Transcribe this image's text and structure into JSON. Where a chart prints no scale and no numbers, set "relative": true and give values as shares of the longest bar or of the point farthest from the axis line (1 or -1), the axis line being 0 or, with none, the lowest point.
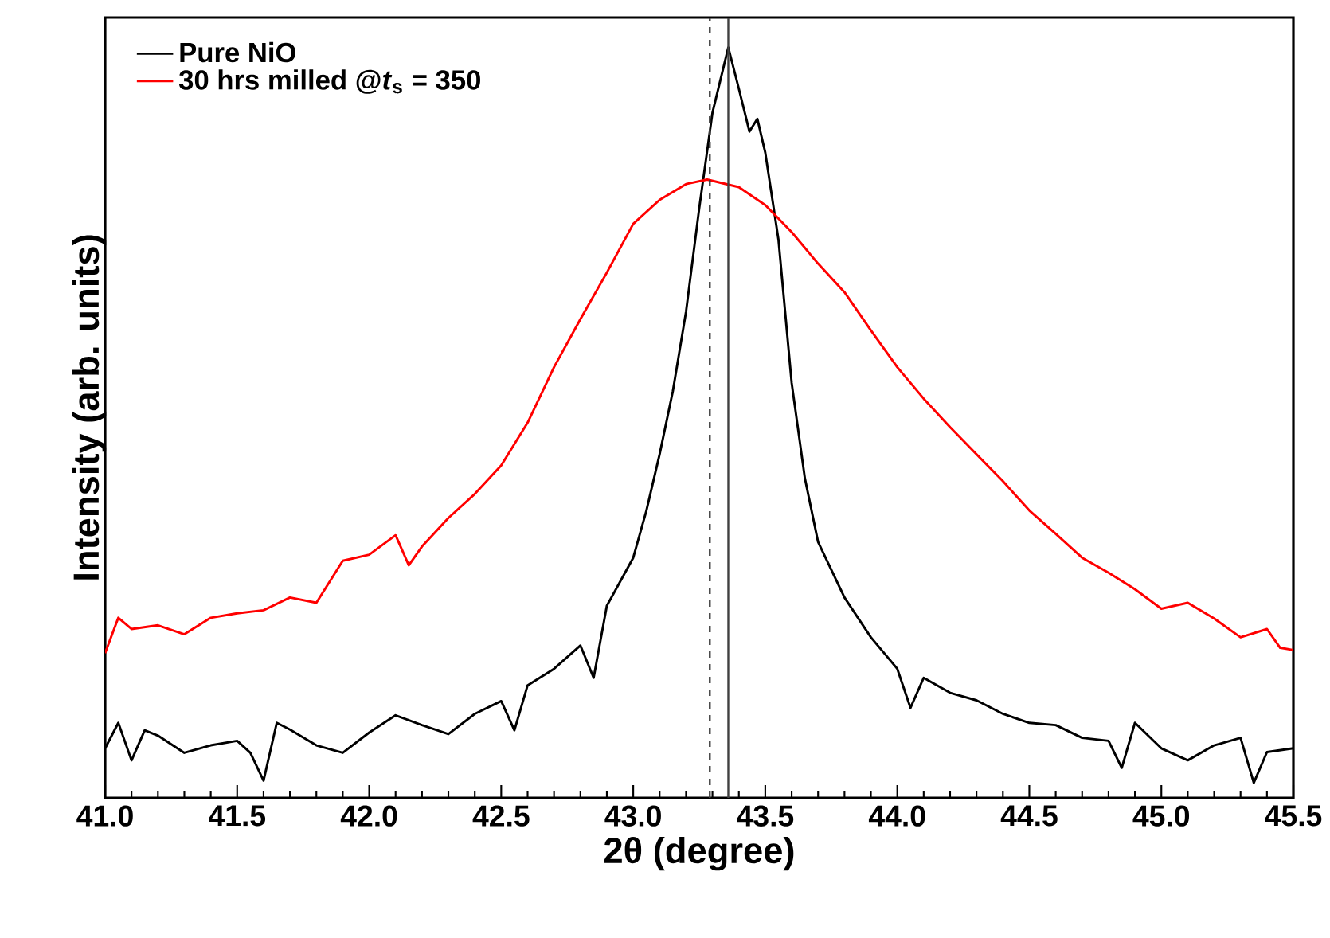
{
  "chart_data": {
    "type": "line",
    "relative": true,
    "xlabel": "2θ (degree)",
    "ylabel": "Intensity (arb. units)",
    "xlim": [
      41.0,
      45.5
    ],
    "xticks": [
      {
        "value": 41.0,
        "label": "41.0"
      },
      {
        "value": 41.5,
        "label": "41.5"
      },
      {
        "value": 42.0,
        "label": "42.0"
      },
      {
        "value": 42.5,
        "label": "42.5"
      },
      {
        "value": 43.0,
        "label": "43.0"
      },
      {
        "value": 43.5,
        "label": "43.5"
      },
      {
        "value": 44.0,
        "label": "44.0"
      },
      {
        "value": 44.5,
        "label": "44.5"
      },
      {
        "value": 45.0,
        "label": "45.0"
      },
      {
        "value": 45.5,
        "label": "45.5"
      }
    ],
    "legend": "top left",
    "grid": false,
    "marker": "none",
    "line_style": "solid",
    "ref_lines": [
      {
        "axis": "x",
        "value": 43.29,
        "color": "#404040",
        "line_style": "dashed"
      },
      {
        "axis": "x",
        "value": 43.36,
        "color": "#404040",
        "line_style": "solid"
      }
    ],
    "series": [
      {
        "name": "Pure NiO",
        "color": "#000000",
        "x": [
          41.0,
          41.05,
          41.1,
          41.15,
          41.2,
          41.3,
          41.4,
          41.5,
          41.55,
          41.6,
          41.65,
          41.7,
          41.8,
          41.9,
          42.0,
          42.1,
          42.2,
          42.3,
          42.4,
          42.5,
          42.55,
          42.6,
          42.7,
          42.8,
          42.85,
          42.9,
          43.0,
          43.05,
          43.1,
          43.15,
          43.2,
          43.25,
          43.3,
          43.36,
          43.4,
          43.44,
          43.47,
          43.5,
          43.55,
          43.6,
          43.65,
          43.7,
          43.8,
          43.9,
          44.0,
          44.05,
          44.1,
          44.2,
          44.3,
          44.4,
          44.5,
          44.6,
          44.7,
          44.8,
          44.85,
          44.9,
          45.0,
          45.1,
          45.2,
          45.3,
          45.35,
          45.4,
          45.5
        ],
        "values": [
          0.066,
          0.1,
          0.05,
          0.09,
          0.083,
          0.06,
          0.07,
          0.076,
          0.06,
          0.023,
          0.1,
          0.091,
          0.07,
          0.06,
          0.087,
          0.11,
          0.097,
          0.085,
          0.112,
          0.129,
          0.09,
          0.15,
          0.172,
          0.203,
          0.16,
          0.256,
          0.32,
          0.383,
          0.458,
          0.542,
          0.648,
          0.786,
          0.913,
          1.0,
          0.945,
          0.888,
          0.905,
          0.86,
          0.744,
          0.553,
          0.426,
          0.341,
          0.267,
          0.214,
          0.172,
          0.12,
          0.16,
          0.14,
          0.13,
          0.112,
          0.1,
          0.097,
          0.08,
          0.076,
          0.04,
          0.1,
          0.066,
          0.05,
          0.07,
          0.08,
          0.02,
          0.061,
          0.066
        ]
      },
      {
        "name": "30 hrs milled @*t*$_{s}$ = 350",
        "color": "#ff0000",
        "x": [
          41.0,
          41.05,
          41.1,
          41.2,
          41.3,
          41.4,
          41.5,
          41.6,
          41.7,
          41.8,
          41.9,
          42.0,
          42.1,
          42.15,
          42.2,
          42.3,
          42.4,
          42.5,
          42.6,
          42.7,
          42.8,
          42.9,
          43.0,
          43.1,
          43.2,
          43.28,
          43.4,
          43.5,
          43.6,
          43.7,
          43.8,
          43.9,
          44.0,
          44.1,
          44.2,
          44.3,
          44.4,
          44.5,
          44.6,
          44.7,
          44.8,
          44.9,
          45.0,
          45.1,
          45.2,
          45.3,
          45.4,
          45.45,
          45.5
        ],
        "values": [
          0.193,
          0.24,
          0.225,
          0.23,
          0.218,
          0.24,
          0.246,
          0.25,
          0.267,
          0.26,
          0.316,
          0.324,
          0.35,
          0.31,
          0.335,
          0.373,
          0.405,
          0.443,
          0.5,
          0.574,
          0.638,
          0.7,
          0.765,
          0.797,
          0.818,
          0.824,
          0.814,
          0.79,
          0.754,
          0.712,
          0.674,
          0.623,
          0.574,
          0.532,
          0.494,
          0.458,
          0.422,
          0.383,
          0.352,
          0.32,
          0.3,
          0.278,
          0.252,
          0.26,
          0.239,
          0.214,
          0.225,
          0.2,
          0.197
        ]
      }
    ]
  }
}
